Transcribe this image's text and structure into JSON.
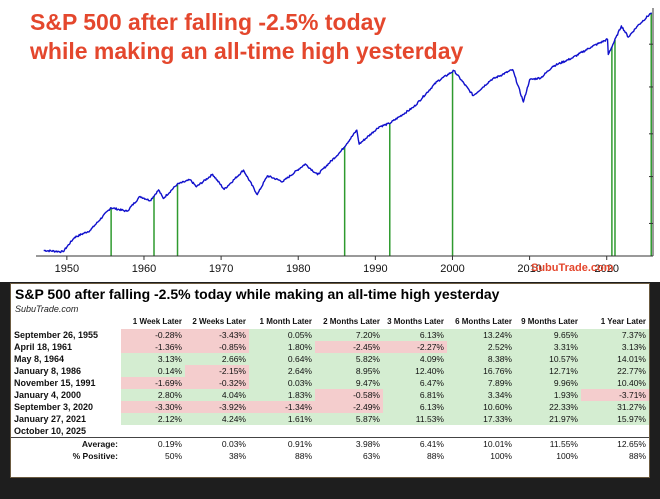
{
  "chart_data": [
    {
      "type": "line",
      "title_lines": [
        "S&P 500 after falling -2.5% today",
        "while making an all-time high yesterday"
      ],
      "x_ticks": [
        1950,
        1960,
        1970,
        1980,
        1990,
        2000,
        2010,
        2020
      ],
      "x_range": [
        1946,
        2026
      ],
      "y_scale": "log",
      "grid": false,
      "series_color": "#1010cc",
      "marker_color": "#2e9a2e",
      "credit": "SubuTrade.com",
      "series": [
        {
          "x": [
            1947,
            1949.5,
            1951,
            1953,
            1955.7,
            1957.8,
            1959.5,
            1960.8,
            1961.9,
            1962.5,
            1964.3,
            1966,
            1966.8,
            1968.9,
            1970.4,
            1972.9,
            1974.7,
            1976,
            1978,
            1980.9,
            1982.5,
            1985.5,
            1987.6,
            1987.9,
            1990.5,
            1991.8,
            1995,
            1998,
            2000.2,
            2002.7,
            2005,
            2007.8,
            2009.2,
            2010,
            2011.5,
            2013,
            2015.5,
            2018,
            2020.1,
            2020.2,
            2021.9,
            2022.8,
            2024,
            2025.8
          ],
          "y": [
            15,
            14.5,
            21,
            25,
            45,
            41,
            60,
            54,
            71,
            57,
            82,
            92,
            77,
            106,
            72,
            118,
            63,
            102,
            88,
            138,
            105,
            190,
            330,
            230,
            360,
            390,
            600,
            1150,
            1520,
            800,
            1200,
            1560,
            680,
            1200,
            1270,
            1700,
            2100,
            2800,
            3400,
            2300,
            4800,
            3600,
            4800,
            6750
          ]
        }
      ],
      "event_markers_x": [
        1955.74,
        1961.3,
        1964.35,
        1986.02,
        1991.87,
        2000.01,
        2020.67,
        2021.07,
        2025.77
      ]
    },
    {
      "type": "table",
      "title": "S&P 500 after falling -2.5% today while making an all-time high yesterday",
      "source": "SubuTrade.com",
      "columns": [
        "1 Week Later",
        "2 Weeks Later",
        "1 Month Later",
        "2 Months Later",
        "3 Months Later",
        "6 Months Later",
        "9 Months Later",
        "1 Year Later"
      ],
      "rows": [
        {
          "date": "September 26, 1955",
          "values": [
            "-0.28%",
            "-3.43%",
            "0.05%",
            "7.20%",
            "6.13%",
            "13.24%",
            "9.65%",
            "7.37%"
          ]
        },
        {
          "date": "April 18, 1961",
          "values": [
            "-1.36%",
            "-0.85%",
            "1.80%",
            "-2.45%",
            "-2.27%",
            "2.52%",
            "3.31%",
            "3.13%"
          ]
        },
        {
          "date": "May 8, 1964",
          "values": [
            "3.13%",
            "2.66%",
            "0.64%",
            "5.82%",
            "4.09%",
            "8.38%",
            "10.57%",
            "14.01%"
          ]
        },
        {
          "date": "January 8, 1986",
          "values": [
            "0.14%",
            "-2.15%",
            "2.64%",
            "8.95%",
            "12.40%",
            "16.76%",
            "12.71%",
            "22.77%"
          ]
        },
        {
          "date": "November 15, 1991",
          "values": [
            "-1.69%",
            "-0.32%",
            "0.03%",
            "9.47%",
            "6.47%",
            "7.89%",
            "9.96%",
            "10.40%"
          ]
        },
        {
          "date": "January 4, 2000",
          "values": [
            "2.80%",
            "4.04%",
            "1.83%",
            "-0.58%",
            "6.81%",
            "3.34%",
            "1.93%",
            "-3.71%"
          ]
        },
        {
          "date": "September 3, 2020",
          "values": [
            "-3.30%",
            "-3.92%",
            "-1.34%",
            "-2.49%",
            "6.13%",
            "10.60%",
            "22.33%",
            "31.27%"
          ]
        },
        {
          "date": "January 27, 2021",
          "values": [
            "2.12%",
            "4.24%",
            "1.61%",
            "5.87%",
            "11.53%",
            "17.33%",
            "21.97%",
            "15.97%"
          ]
        },
        {
          "date": "October 10, 2025",
          "values": [
            "",
            "",
            "",
            "",
            "",
            "",
            "",
            ""
          ]
        }
      ],
      "summary": [
        {
          "label": "Average:",
          "values": [
            "0.19%",
            "0.03%",
            "0.91%",
            "3.98%",
            "6.41%",
            "10.01%",
            "11.55%",
            "12.65%"
          ]
        },
        {
          "label": "% Positive:",
          "values": [
            "50%",
            "38%",
            "88%",
            "63%",
            "88%",
            "100%",
            "100%",
            "88%"
          ]
        }
      ],
      "positive_color": "#d4edd1",
      "negative_color": "#f4cdcd"
    }
  ]
}
